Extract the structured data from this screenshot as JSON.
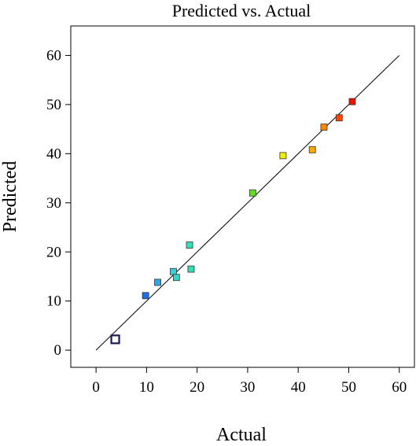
{
  "chart_data": {
    "type": "scatter",
    "title": "Predicted vs. Actual",
    "xlabel": "Actual",
    "ylabel": "Predicted",
    "xlim": [
      -5,
      63
    ],
    "ylim": [
      -3.5,
      66
    ],
    "xticks": [
      0,
      10,
      20,
      30,
      40,
      50,
      60
    ],
    "yticks": [
      0,
      10,
      20,
      30,
      40,
      50,
      60
    ],
    "grid": false,
    "legend": "none",
    "reference_line": {
      "x": [
        0,
        60
      ],
      "y": [
        0,
        60
      ],
      "color": "#000000"
    },
    "points": [
      {
        "x": 3.8,
        "y": 2.2,
        "color": "#ffffff",
        "edge": "#1a1a55",
        "highlight": true
      },
      {
        "x": 9.8,
        "y": 11.1,
        "color": "#1e6fe0"
      },
      {
        "x": 12.2,
        "y": 13.8,
        "color": "#2aa8e8"
      },
      {
        "x": 15.3,
        "y": 16.0,
        "color": "#33d0e0"
      },
      {
        "x": 15.9,
        "y": 14.8,
        "color": "#2fd8c8"
      },
      {
        "x": 18.5,
        "y": 21.4,
        "color": "#33e0b8"
      },
      {
        "x": 18.8,
        "y": 16.5,
        "color": "#30e0b0"
      },
      {
        "x": 31.0,
        "y": 32.0,
        "color": "#66dd22"
      },
      {
        "x": 37.0,
        "y": 39.6,
        "color": "#eeee00"
      },
      {
        "x": 42.8,
        "y": 40.8,
        "color": "#ffaa00"
      },
      {
        "x": 45.1,
        "y": 45.4,
        "color": "#ff8800"
      },
      {
        "x": 48.1,
        "y": 47.3,
        "color": "#ff4400"
      },
      {
        "x": 50.7,
        "y": 50.6,
        "color": "#ee1100"
      }
    ]
  }
}
